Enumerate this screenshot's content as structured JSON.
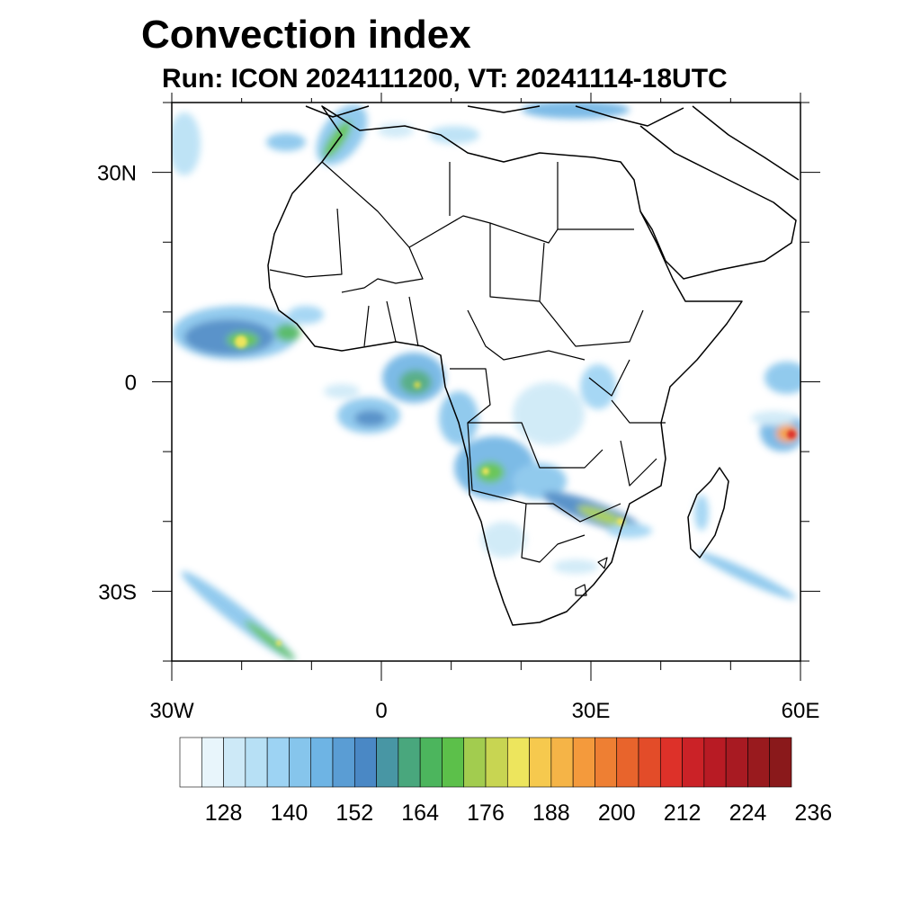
{
  "title": "Convection index",
  "subtitle": "Run: ICON 2024111200,  VT: 20241114-18UTC",
  "map": {
    "lon_range": [
      -30,
      60
    ],
    "lat_range": [
      -40,
      40
    ],
    "lat_labels": [
      {
        "lat": 30,
        "text": "30N"
      },
      {
        "lat": 0,
        "text": "0"
      },
      {
        "lat": -30,
        "text": "30S"
      }
    ],
    "lon_labels": [
      {
        "lon": -30,
        "text": "30W"
      },
      {
        "lon": 0,
        "text": "0"
      },
      {
        "lon": 30,
        "text": "30E"
      },
      {
        "lon": 60,
        "text": "60E"
      }
    ]
  },
  "colorbar": {
    "colors": [
      "#ffffff",
      "#e8f5fb",
      "#cde9f7",
      "#b7e0f5",
      "#9dd3f3",
      "#86c5ec",
      "#6eb4e4",
      "#5a9dd4",
      "#4a88c5",
      "#4896a4",
      "#49a77d",
      "#4cb55d",
      "#5cc04a",
      "#a2cc4f",
      "#c8d552",
      "#ede55d",
      "#f6c94e",
      "#f5b447",
      "#f49a3c",
      "#ee7f33",
      "#e8642c",
      "#e34c29",
      "#dd3129",
      "#cb2227",
      "#b81b24",
      "#a81a22",
      "#991a1e",
      "#8a191b"
    ],
    "labels": [
      "128",
      "140",
      "152",
      "164",
      "176",
      "188",
      "200",
      "212",
      "224",
      "236"
    ]
  },
  "convective_cells": [
    {
      "region": "West African coast",
      "lon": -23,
      "lat": 7.5,
      "value": 176
    },
    {
      "region": "West African coast",
      "lon": -19.5,
      "lat": 6,
      "value": 188
    },
    {
      "region": "West African coast",
      "lon": -12,
      "lat": 6.5,
      "value": 176
    },
    {
      "region": "Gulf of Guinea",
      "lon": 3.5,
      "lat": 0,
      "value": 176
    },
    {
      "region": "Gulf of Guinea",
      "lon": 0,
      "lat": -5.5,
      "value": 164
    },
    {
      "region": "Angola / Zambia",
      "lon": 14,
      "lat": -13,
      "value": 176
    },
    {
      "region": "Angola / Zambia",
      "lon": 26,
      "lat": -19,
      "value": 176
    },
    {
      "region": "Zimbabwe / Mozambique",
      "lon": 31,
      "lat": -20,
      "value": 188
    },
    {
      "region": "Indian Ocean",
      "lon": 58.5,
      "lat": -7,
      "value": 212
    },
    {
      "region": "South Atlantic",
      "lon": -21,
      "lat": -34,
      "value": 176
    }
  ]
}
